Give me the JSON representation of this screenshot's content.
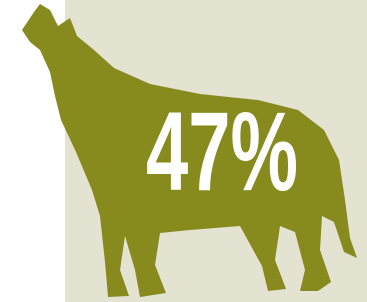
{
  "label": "47%"
}
